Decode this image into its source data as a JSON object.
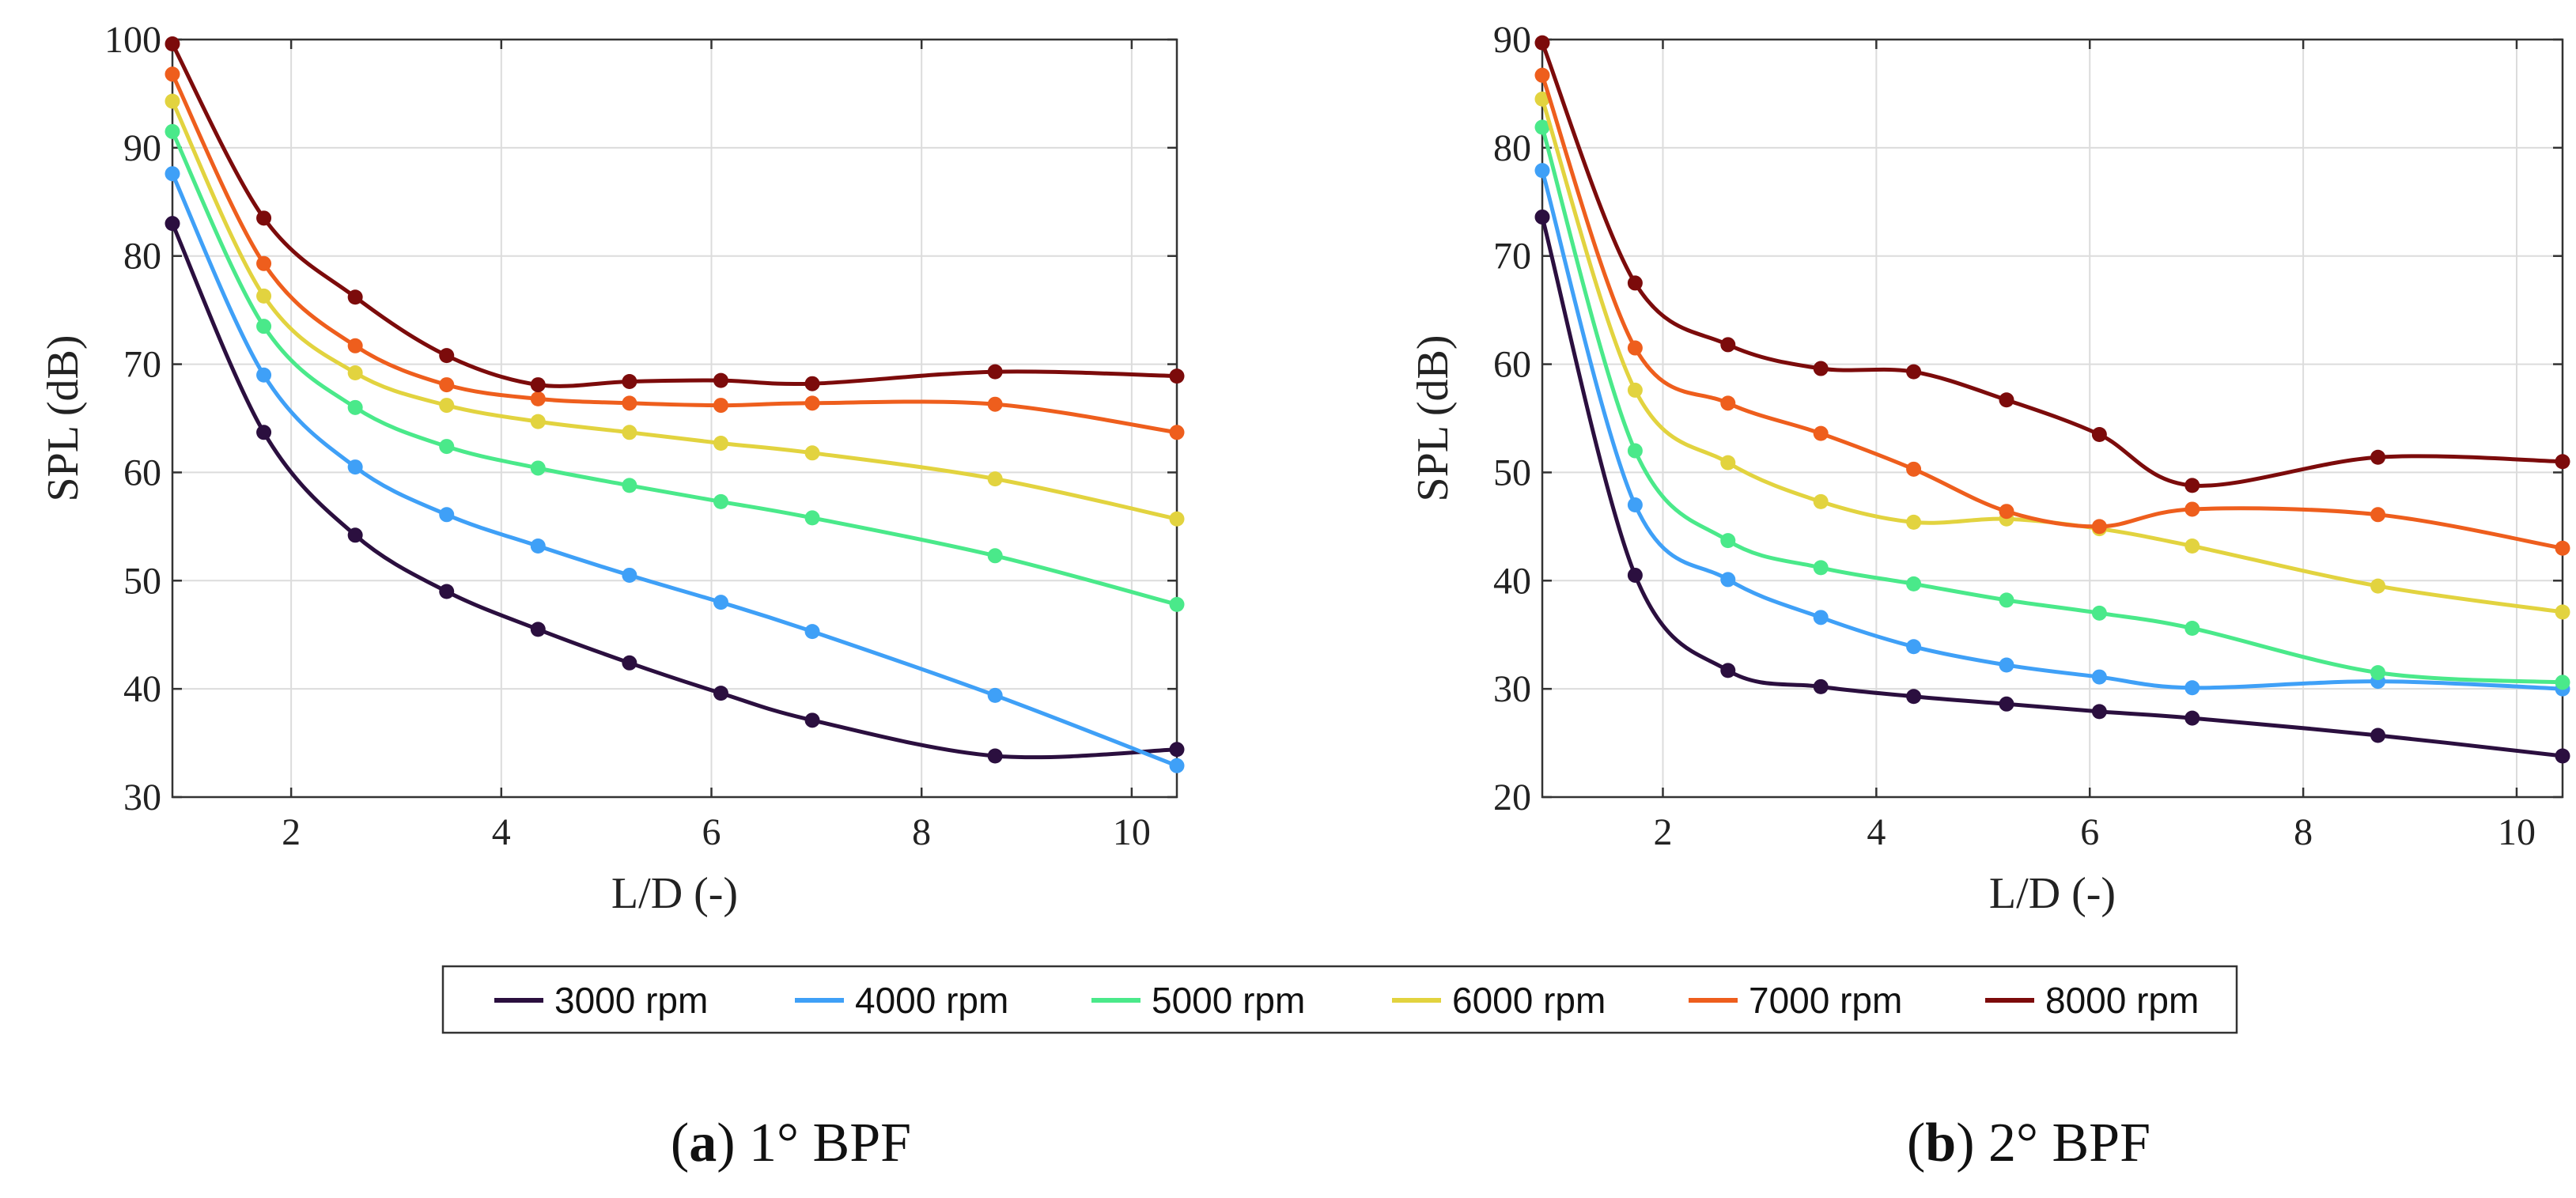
{
  "legend": {
    "entries": [
      {
        "label": "3000 rpm",
        "color": "#2b0f3f"
      },
      {
        "label": "4000 rpm",
        "color": "#3fa0f7"
      },
      {
        "label": "5000 rpm",
        "color": "#4ae98a"
      },
      {
        "label": "6000 rpm",
        "color": "#e2d33f"
      },
      {
        "label": "7000 rpm",
        "color": "#ee5e1d"
      },
      {
        "label": "8000 rpm",
        "color": "#7c0b0b"
      }
    ]
  },
  "captions": [
    {
      "letter": "a",
      "text": "1° BPF"
    },
    {
      "letter": "b",
      "text": "2° BPF"
    }
  ],
  "chart_data": [
    {
      "type": "line",
      "xlabel": "L/D (-)",
      "ylabel": "SPL (dB)",
      "xlim": [
        0.87,
        10.43
      ],
      "ylim": [
        30,
        100
      ],
      "xticks": [
        2,
        4,
        6,
        8,
        10
      ],
      "yticks": [
        30,
        40,
        50,
        60,
        70,
        80,
        90,
        100
      ],
      "grid": true,
      "x": [
        0.87,
        1.74,
        2.61,
        3.48,
        4.35,
        5.22,
        6.09,
        6.96,
        8.7,
        10.43
      ],
      "series": [
        {
          "name": "3000 rpm",
          "color": "#2b0f3f",
          "values": [
            83,
            63.7,
            54.2,
            49,
            45.5,
            42.4,
            39.6,
            37.1,
            33.8,
            34.4
          ]
        },
        {
          "name": "4000 rpm",
          "color": "#3fa0f7",
          "values": [
            87.6,
            69,
            60.5,
            56.1,
            53.2,
            50.5,
            48,
            45.3,
            39.4,
            32.9
          ]
        },
        {
          "name": "5000 rpm",
          "color": "#4ae98a",
          "values": [
            91.5,
            73.5,
            66,
            62.4,
            60.4,
            58.8,
            57.3,
            55.8,
            52.3,
            47.8
          ]
        },
        {
          "name": "6000 rpm",
          "color": "#e2d33f",
          "values": [
            94.3,
            76.3,
            69.2,
            66.2,
            64.7,
            63.7,
            62.7,
            61.8,
            59.4,
            55.7
          ]
        },
        {
          "name": "7000 rpm",
          "color": "#ee5e1d",
          "values": [
            96.8,
            79.3,
            71.7,
            68.1,
            66.8,
            66.4,
            66.2,
            66.4,
            66.3,
            63.7
          ]
        },
        {
          "name": "8000 rpm",
          "color": "#7c0b0b",
          "values": [
            99.6,
            83.5,
            76.2,
            70.8,
            68.1,
            68.4,
            68.5,
            68.2,
            69.3,
            68.9
          ]
        }
      ]
    },
    {
      "type": "line",
      "xlabel": "L/D (-)",
      "ylabel": "SPL (dB)",
      "xlim": [
        0.87,
        10.43
      ],
      "ylim": [
        20,
        90
      ],
      "xticks": [
        2,
        4,
        6,
        8,
        10
      ],
      "yticks": [
        20,
        30,
        40,
        50,
        60,
        70,
        80,
        90
      ],
      "grid": true,
      "x": [
        0.87,
        1.74,
        2.61,
        3.48,
        4.35,
        5.22,
        6.09,
        6.96,
        8.7,
        10.43
      ],
      "series": [
        {
          "name": "3000 rpm",
          "color": "#2b0f3f",
          "values": [
            73.6,
            40.5,
            31.7,
            30.2,
            29.3,
            28.6,
            27.9,
            27.3,
            25.7,
            23.8
          ]
        },
        {
          "name": "4000 rpm",
          "color": "#3fa0f7",
          "values": [
            77.9,
            47,
            40.1,
            36.6,
            33.9,
            32.2,
            31.1,
            30.1,
            30.7,
            30
          ]
        },
        {
          "name": "5000 rpm",
          "color": "#4ae98a",
          "values": [
            81.9,
            52,
            43.7,
            41.2,
            39.7,
            38.2,
            37,
            35.6,
            31.5,
            30.6
          ]
        },
        {
          "name": "6000 rpm",
          "color": "#e2d33f",
          "values": [
            84.5,
            57.6,
            50.9,
            47.3,
            45.4,
            45.7,
            44.8,
            43.2,
            39.5,
            37.1
          ]
        },
        {
          "name": "7000 rpm",
          "color": "#ee5e1d",
          "values": [
            86.7,
            61.5,
            56.4,
            53.6,
            50.3,
            46.4,
            45,
            46.6,
            46.1,
            43
          ]
        },
        {
          "name": "8000 rpm",
          "color": "#7c0b0b",
          "values": [
            89.7,
            67.5,
            61.8,
            59.6,
            59.3,
            56.7,
            53.5,
            48.8,
            51.4,
            51
          ]
        }
      ]
    }
  ]
}
